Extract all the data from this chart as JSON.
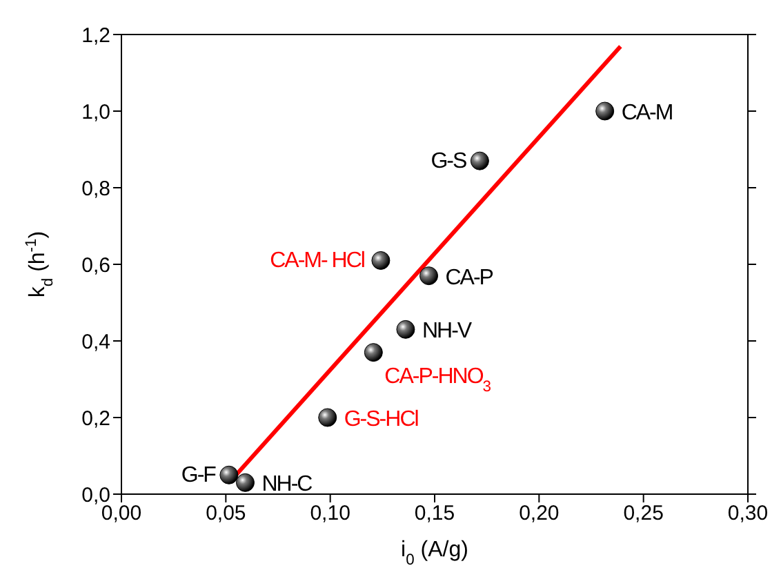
{
  "chart_data": {
    "type": "scatter",
    "xlabel": "i$_{0}$ (A/g)",
    "ylabel": "k$_{d}$ (h$^{-1}$)",
    "xlim": [
      0,
      0.3
    ],
    "ylim": [
      0,
      1.2
    ],
    "xticks": [
      {
        "value": 0,
        "label": "0,00"
      },
      {
        "value": 0.05,
        "label": "0,05"
      },
      {
        "value": 0.1,
        "label": "0,10"
      },
      {
        "value": 0.15,
        "label": "0,15"
      },
      {
        "value": 0.2,
        "label": "0,20"
      },
      {
        "value": 0.25,
        "label": "0,25"
      },
      {
        "value": 0.3,
        "label": "0,30"
      }
    ],
    "yticks": [
      {
        "value": 0,
        "label": "0,0"
      },
      {
        "value": 0.2,
        "label": "0,2"
      },
      {
        "value": 0.4,
        "label": "0,4"
      },
      {
        "value": 0.6,
        "label": "0,6"
      },
      {
        "value": 0.8,
        "label": "0,8"
      },
      {
        "value": 1.0,
        "label": "1,0"
      },
      {
        "value": 1.2,
        "label": "1,2"
      }
    ],
    "grid": false,
    "marker": "circle",
    "series": [
      {
        "color": "#000000",
        "x": [
          0.0515,
          0.0593,
          0.0987,
          0.1207,
          0.1242,
          0.1361,
          0.1472,
          0.1716,
          0.2315
        ],
        "values": [
          0.05,
          0.03,
          0.2,
          0.37,
          0.61,
          0.43,
          0.57,
          0.87,
          1.0
        ]
      },
      {
        "type": "line",
        "color": "#ff0000",
        "marker": "none",
        "x": [
          0.0522,
          0.239
        ],
        "values": [
          0.034,
          1.169
        ]
      }
    ],
    "annotations": [
      {
        "text": "G-F",
        "x": 0.0515,
        "y": 0.05
      },
      {
        "text": "NH-C",
        "x": 0.0593,
        "y": 0.03
      },
      {
        "text": "G-S-HCl",
        "x": 0.0987,
        "y": 0.2
      },
      {
        "text": "CA-P-HNO$_{3}$",
        "x": 0.1207,
        "y": 0.37
      },
      {
        "text": "CA-M- HCl",
        "x": 0.1242,
        "y": 0.61
      },
      {
        "text": "NH-V",
        "x": 0.1361,
        "y": 0.43
      },
      {
        "text": "CA-P",
        "x": 0.1472,
        "y": 0.57
      },
      {
        "text": "G-S",
        "x": 0.1716,
        "y": 0.87
      },
      {
        "text": "CA-M",
        "x": 0.2315,
        "y": 1.0
      }
    ]
  }
}
